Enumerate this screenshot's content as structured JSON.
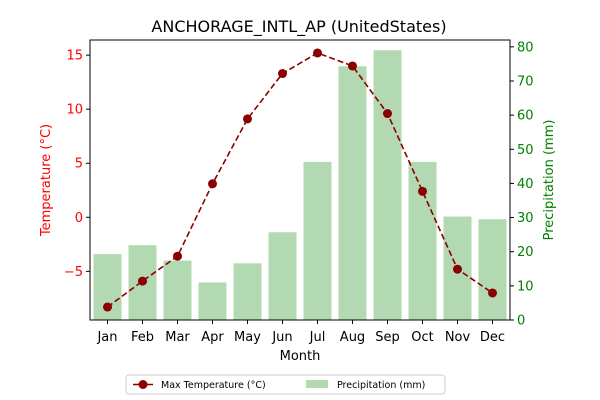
{
  "chart_data": {
    "type": "bar+line",
    "title": "ANCHORAGE_INTL_AP (UnitedStates)",
    "xlabel": "Month",
    "categories": [
      "Jan",
      "Feb",
      "Mar",
      "Apr",
      "May",
      "Jun",
      "Jul",
      "Aug",
      "Sep",
      "Oct",
      "Nov",
      "Dec"
    ],
    "y_left": {
      "label": "Temperature (°C)",
      "ylim": [
        -9.5,
        16.4
      ],
      "ticks": [
        -5,
        0,
        5,
        10,
        15
      ],
      "tick_labels": [
        "−5",
        "0",
        "5",
        "10",
        "15"
      ],
      "color": "#ff0000"
    },
    "y_right": {
      "label": "Precipitation (mm)",
      "ylim": [
        0,
        82
      ],
      "ticks": [
        0,
        10,
        20,
        30,
        40,
        50,
        60,
        70,
        80
      ],
      "tick_labels": [
        "0",
        "10",
        "20",
        "30",
        "40",
        "50",
        "60",
        "70",
        "80"
      ],
      "color": "#008000"
    },
    "series": [
      {
        "name": "Max Temperature (°C)",
        "type": "line",
        "axis": "left",
        "color": "#8b0000",
        "values": [
          -8.3,
          -5.9,
          -3.6,
          3.1,
          9.1,
          13.3,
          15.2,
          14.0,
          9.6,
          2.4,
          -4.8,
          -7.0
        ]
      },
      {
        "name": "Precipitation (mm)",
        "type": "bar",
        "axis": "right",
        "color": "#b2d9b2",
        "values": [
          19.3,
          21.9,
          17.4,
          11.0,
          16.6,
          25.7,
          46.3,
          74.3,
          79.0,
          46.3,
          30.3,
          29.5
        ]
      }
    ],
    "legend": "bottom-center"
  }
}
